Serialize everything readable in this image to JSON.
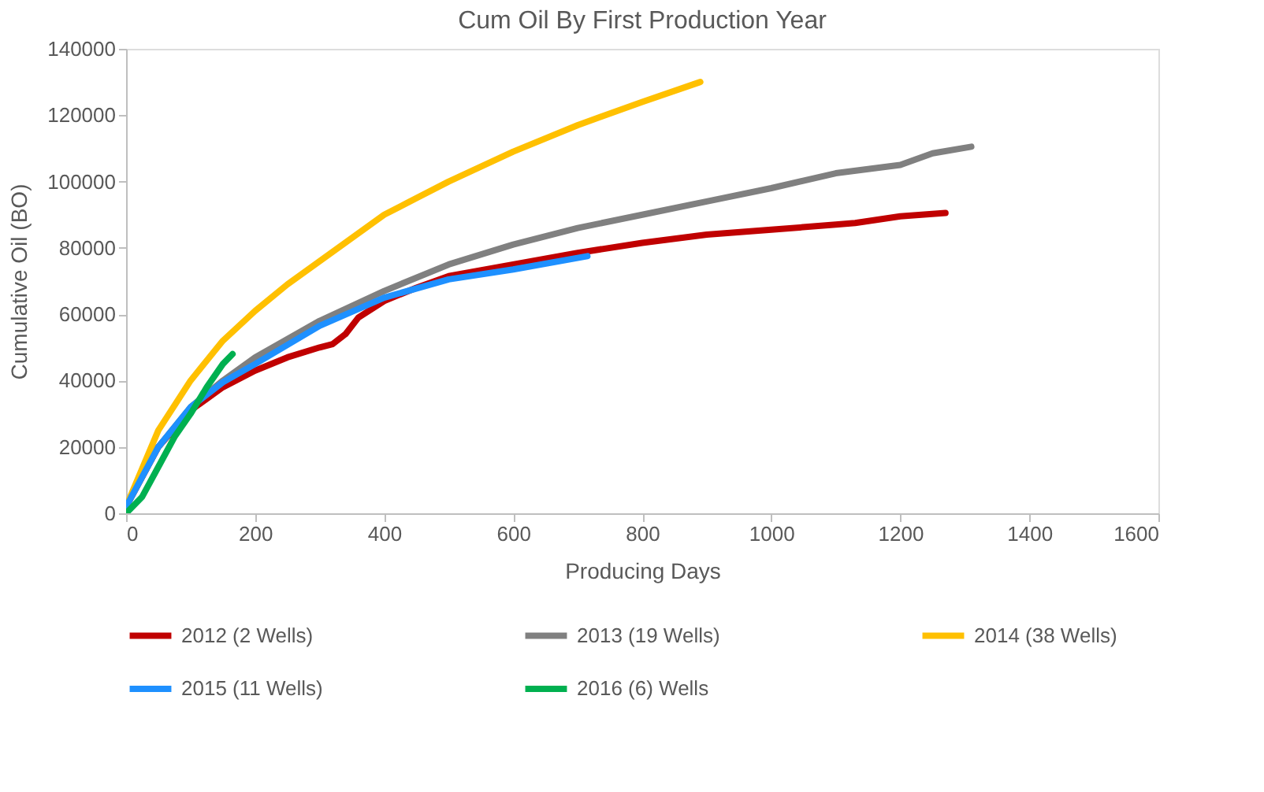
{
  "chart_data": {
    "type": "line",
    "title": "Cum Oil By First Production Year",
    "xlabel": "Producing Days",
    "ylabel": "Cumulative Oil (BO)",
    "xlim": [
      0,
      1600
    ],
    "xticks": [
      0,
      200,
      400,
      600,
      800,
      1000,
      1200,
      1400,
      1600
    ],
    "ylim": [
      0,
      140000
    ],
    "yticks": [
      0,
      20000,
      40000,
      60000,
      80000,
      100000,
      120000,
      140000
    ],
    "grid": false,
    "legend": "bottom",
    "marker": "none",
    "line_style": "solid",
    "series": [
      {
        "name": "2012 (2 Wells)",
        "color": "#c00000",
        "x": [
          0,
          50,
          100,
          150,
          200,
          250,
          300,
          320,
          340,
          360,
          400,
          450,
          500,
          600,
          700,
          800,
          900,
          1000,
          1100,
          1130,
          1200,
          1270
        ],
        "values": [
          2000,
          20000,
          31000,
          38000,
          43000,
          47000,
          50000,
          51000,
          54000,
          59000,
          64000,
          68000,
          71500,
          75000,
          78500,
          81500,
          84000,
          85500,
          87000,
          87500,
          89500,
          90500
        ]
      },
      {
        "name": "2013 (19 Wells)",
        "color": "#808080",
        "x": [
          0,
          50,
          100,
          150,
          200,
          300,
          400,
          500,
          600,
          700,
          800,
          900,
          1000,
          1100,
          1200,
          1250,
          1310
        ],
        "values": [
          2000,
          20000,
          32000,
          40000,
          47000,
          58000,
          67000,
          75000,
          81000,
          86000,
          90000,
          94000,
          98000,
          102500,
          105000,
          108500,
          110500
        ]
      },
      {
        "name": "2014 (38 Wells)",
        "color": "#ffc000",
        "x": [
          0,
          50,
          100,
          150,
          200,
          250,
          300,
          350,
          400,
          500,
          600,
          700,
          800,
          890
        ],
        "values": [
          2000,
          25000,
          40000,
          52000,
          61000,
          69000,
          76000,
          83000,
          90000,
          100000,
          109000,
          117000,
          124000,
          130000
        ]
      },
      {
        "name": "2015 (11 Wells)",
        "color": "#1e90ff",
        "x": [
          0,
          50,
          100,
          150,
          200,
          300,
          400,
          500,
          600,
          715
        ],
        "values": [
          2000,
          20000,
          32000,
          39500,
          45000,
          56500,
          65000,
          70500,
          73500,
          77500
        ]
      },
      {
        "name": "2016 (6) Wells",
        "color": "#00b050",
        "x": [
          0,
          25,
          50,
          75,
          100,
          125,
          150,
          165
        ],
        "values": [
          0,
          5000,
          14000,
          23000,
          30000,
          38000,
          45000,
          48000
        ]
      }
    ]
  }
}
